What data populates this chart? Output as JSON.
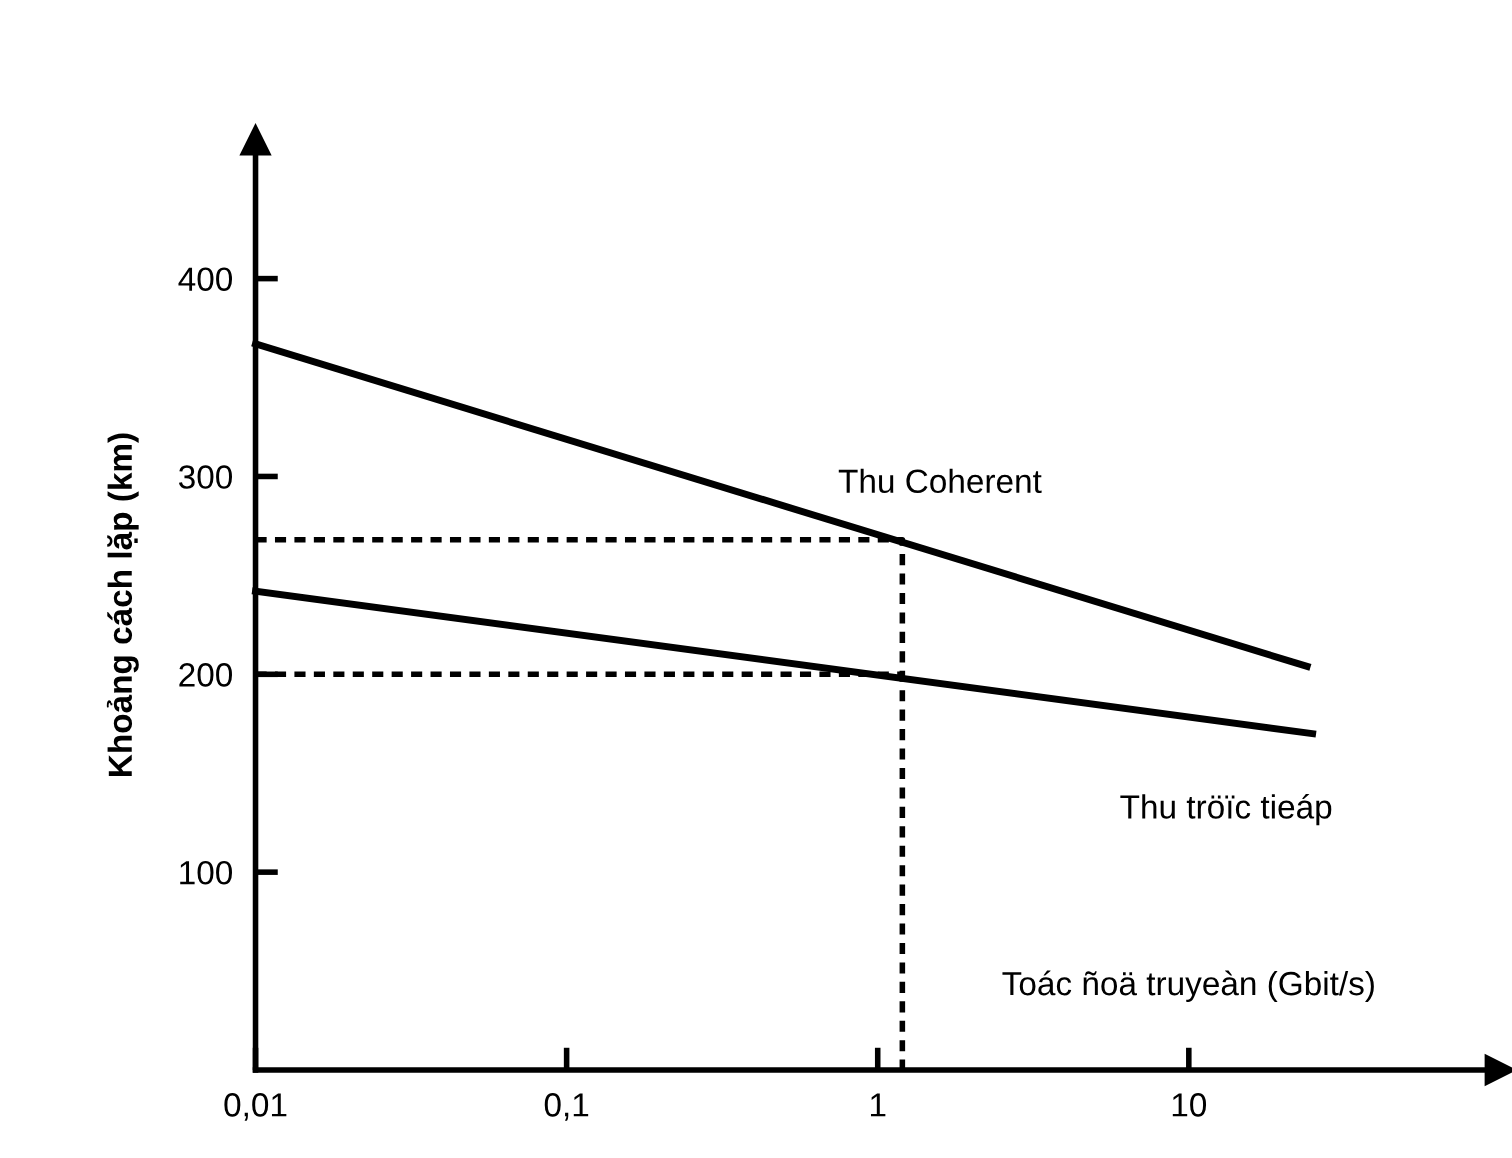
{
  "chart_data": {
    "type": "line",
    "xlabel": "Toác ñoä truyeàn (Gbit/s)",
    "ylabel": "Khoảng cách lặp (km)",
    "log": "x",
    "xlim": [
      0.01,
      100
    ],
    "xticks": [
      {
        "value": 0.01,
        "label": "0,01"
      },
      {
        "value": 0.1,
        "label": "0,1"
      },
      {
        "value": 1,
        "label": "1"
      },
      {
        "value": 10,
        "label": "10"
      }
    ],
    "ylim": [
      0,
      470
    ],
    "yticks": [
      100,
      200,
      300,
      400
    ],
    "grid": false,
    "legend": false,
    "marker": "none",
    "series": [
      {
        "name": "Thu Coherent",
        "color": "#000000",
        "x": [
          0.01,
          24
        ],
        "values": [
          367,
          204
        ],
        "line_style": "solid"
      },
      {
        "name": "Thu tröïc tieáp",
        "color": "#000000",
        "x": [
          0.01,
          25
        ],
        "values": [
          242,
          170
        ],
        "line_style": "solid"
      },
      {
        "color": "#000000",
        "x": [
          0.01,
          1.2,
          1.2
        ],
        "values": [
          268,
          268,
          0
        ],
        "line_style": "dotted"
      },
      {
        "color": "#000000",
        "x": [
          0.01,
          1.2
        ],
        "values": [
          200,
          200
        ],
        "line_style": "dotted"
      }
    ]
  }
}
